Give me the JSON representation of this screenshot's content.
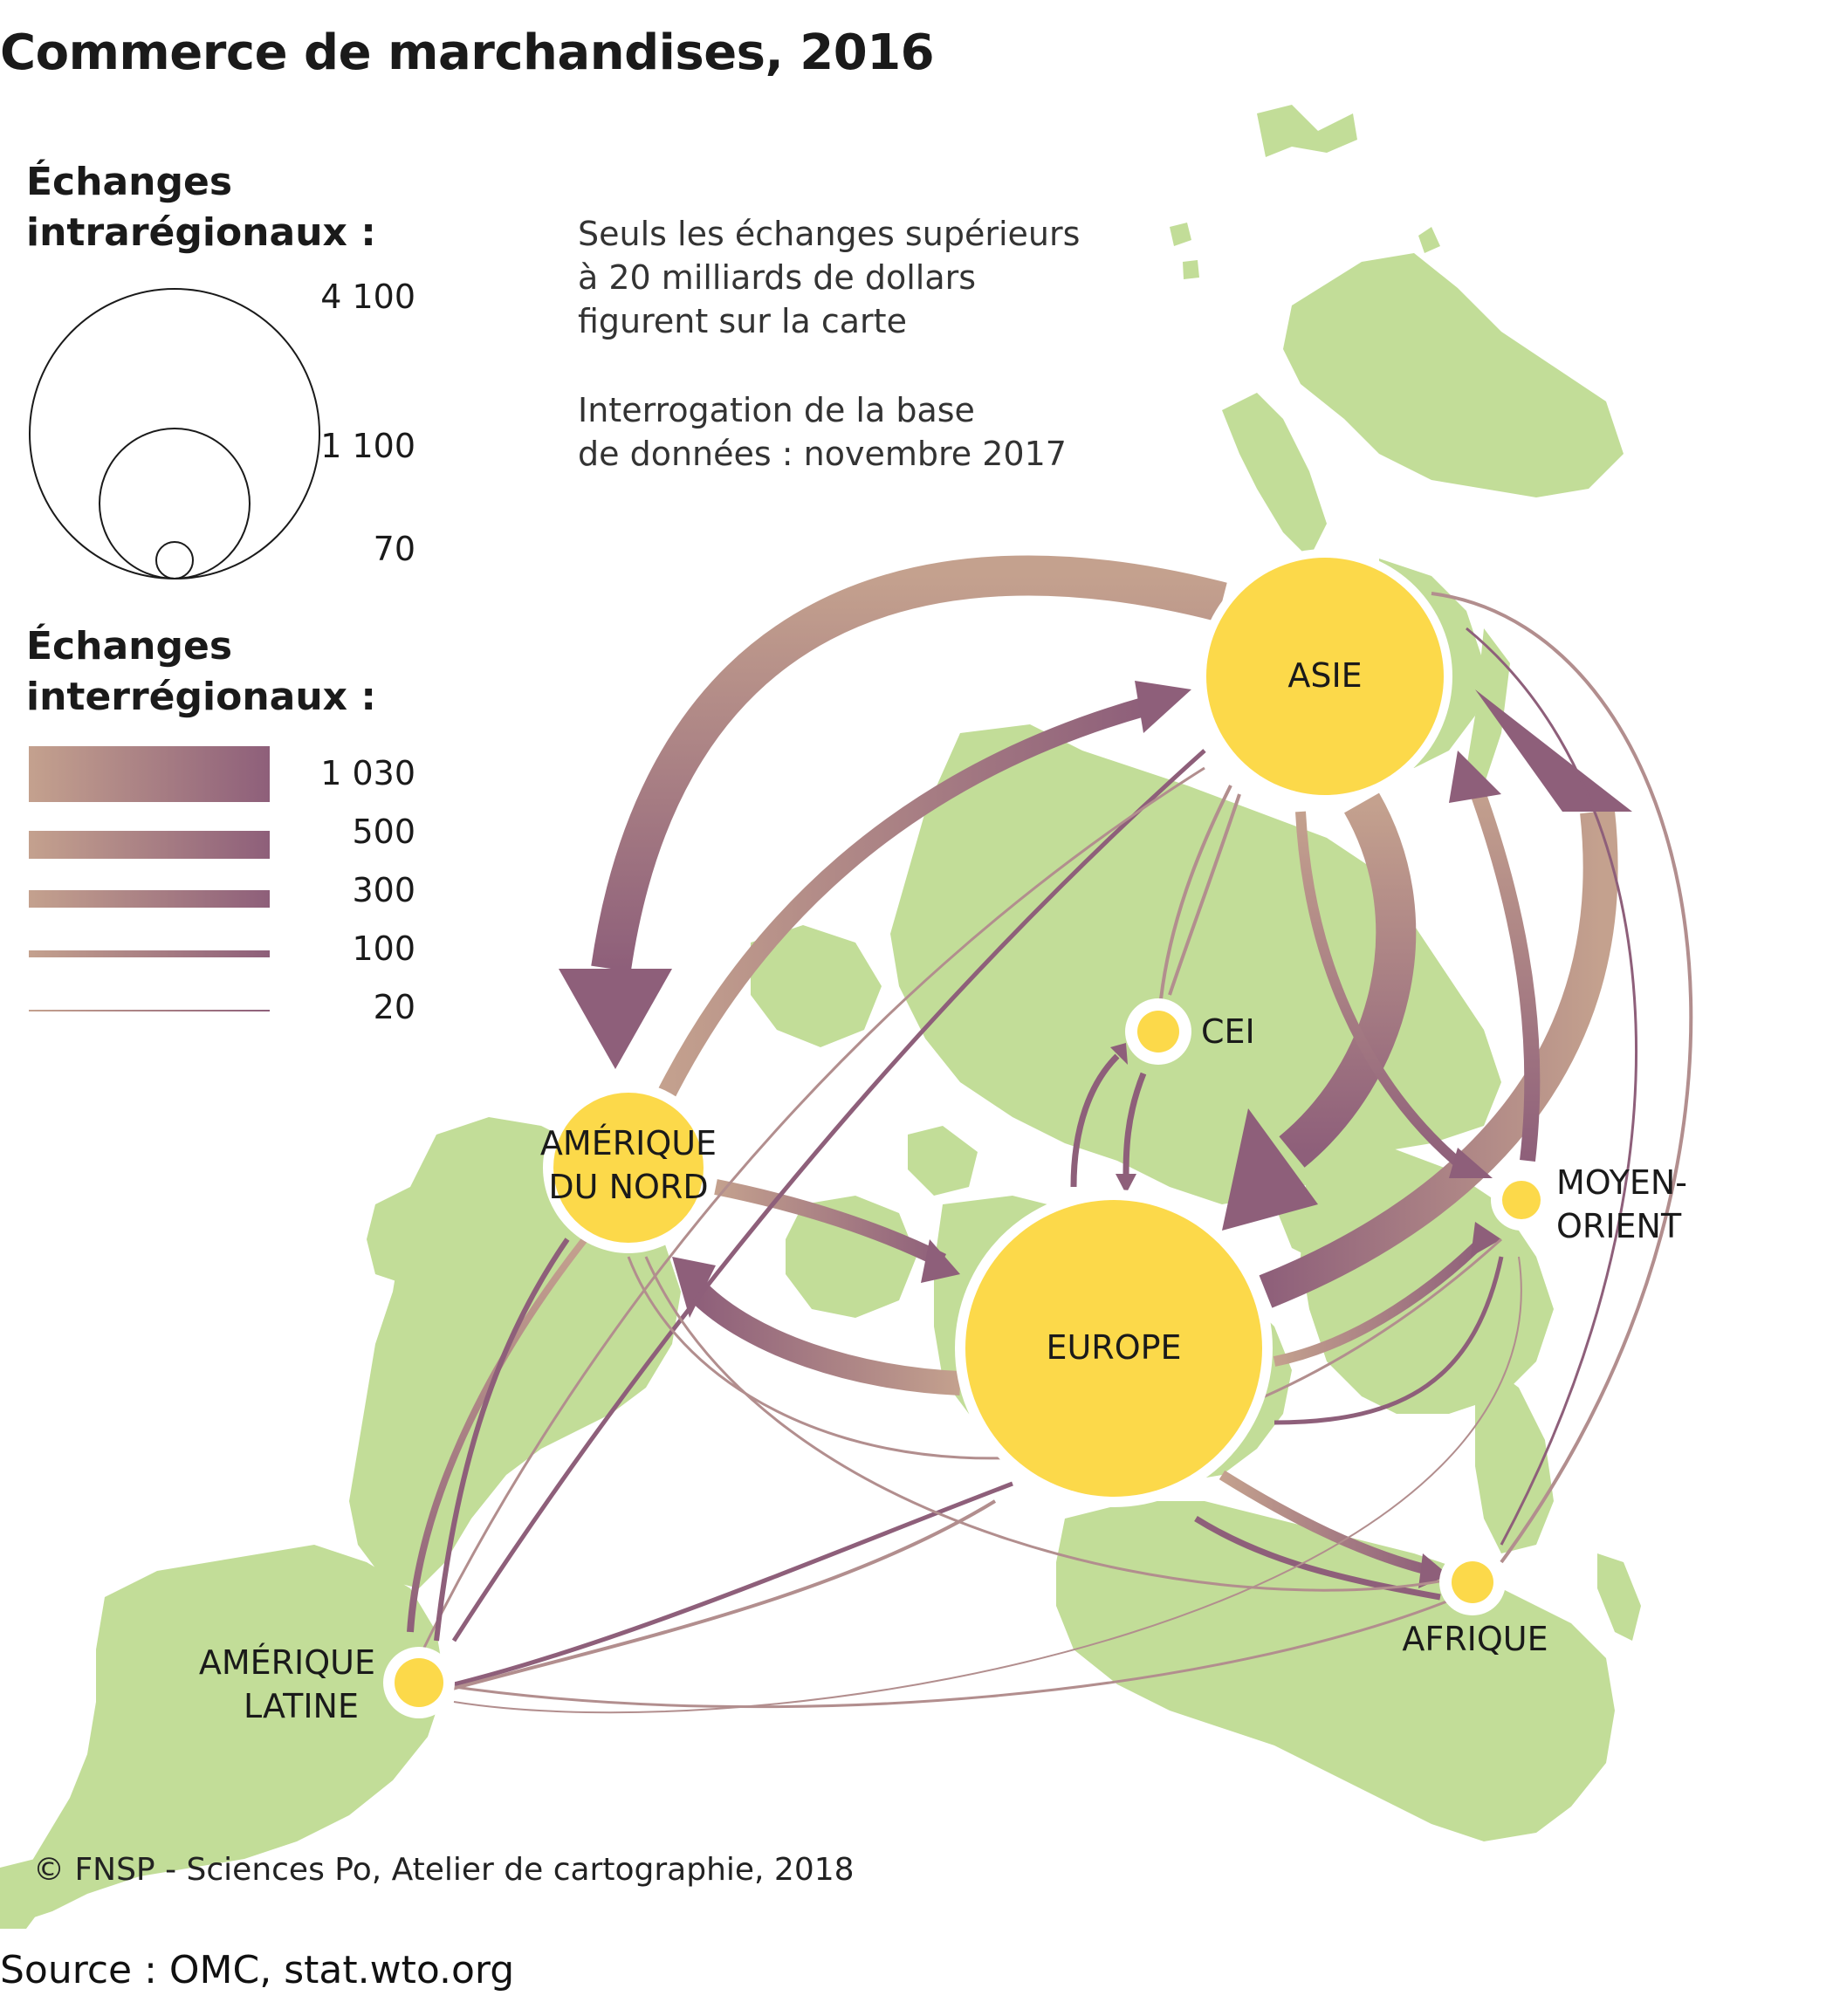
{
  "title": "Commerce de marchandises, 2016",
  "legend": {
    "intra_title_line1": "Échanges",
    "intra_title_line2": "intrarégionaux :",
    "intra_values": [
      "4 100",
      "1 100",
      "70"
    ],
    "inter_title_line1": "Échanges",
    "inter_title_line2": "interrégionaux :",
    "inter_values": [
      "1 030",
      "500",
      "300",
      "100",
      "20"
    ]
  },
  "notes": {
    "line1": "Seuls les échanges supérieurs",
    "line2": "à 20 milliards de dollars",
    "line3": "figurent sur la carte",
    "line4": "Interrogation de la base",
    "line5": "de données : novembre 2017"
  },
  "regions": {
    "asie": "ASIE",
    "amerique_nord_1": "AMÉRIQUE",
    "amerique_nord_2": "DU NORD",
    "europe": "EUROPE",
    "cei": "CEI",
    "moyen_orient_1": "MOYEN-",
    "moyen_orient_2": "ORIENT",
    "afrique": "AFRIQUE",
    "amerique_latine_1": "AMÉRIQUE",
    "amerique_latine_2": "LATINE"
  },
  "credit": "© FNSP - Sciences Po, Atelier de cartographie, 2018",
  "source": "Source : OMC, stat.wto.org",
  "colors": {
    "land": "#c2dd98",
    "node": "#fcd94a",
    "flow_start": "#c4a18e",
    "flow_end": "#8e5f7a"
  }
}
